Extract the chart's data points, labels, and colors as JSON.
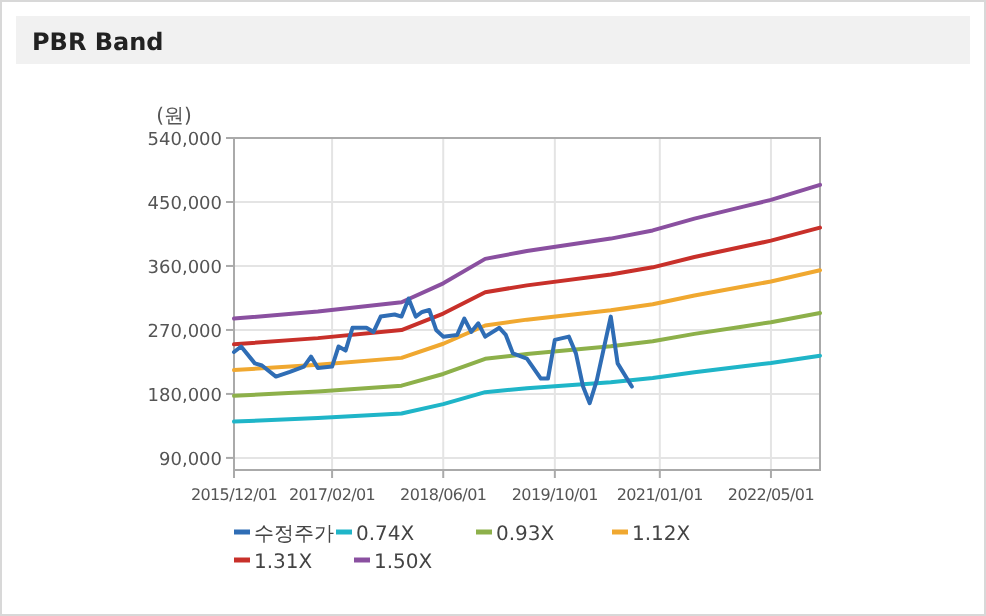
{
  "chart_data": {
    "type": "line",
    "title": "PBR Band",
    "ylabel": "(원)",
    "xlim": [
      "2015-12-01",
      "2022-12-01"
    ],
    "xticks": [
      {
        "value": "2015-12-01",
        "label": "2015/12/01"
      },
      {
        "value": "2017-02-01",
        "label": "2017/02/01"
      },
      {
        "value": "2018-06-01",
        "label": "2018/06/01"
      },
      {
        "value": "2019-10-01",
        "label": "2019/10/01"
      },
      {
        "value": "2021-01-01",
        "label": "2021/01/01"
      },
      {
        "value": "2022-05-01",
        "label": "2022/05/01"
      }
    ],
    "ylim": [
      73000,
      540000
    ],
    "yticks": [
      {
        "value": 90000,
        "label": "90,000"
      },
      {
        "value": 180000,
        "label": "180,000"
      },
      {
        "value": 270000,
        "label": "270,000"
      },
      {
        "value": 360000,
        "label": "360,000"
      },
      {
        "value": 450000,
        "label": "450,000"
      },
      {
        "value": 540000,
        "label": "540,000"
      }
    ],
    "grid": true,
    "legend": "bottom",
    "marker": "none",
    "line_style": "solid",
    "series": [
      {
        "name": "수정주가",
        "color": "#2f6db5",
        "x": [
          "2015-12",
          "2016-01",
          "2016-03",
          "2016-04",
          "2016-06",
          "2016-08",
          "2016-10",
          "2016-11",
          "2016-12",
          "2017-02",
          "2017-03",
          "2017-04",
          "2017-05",
          "2017-07",
          "2017-08",
          "2017-09",
          "2017-11",
          "2017-12",
          "2018-01",
          "2018-02",
          "2018-03",
          "2018-04",
          "2018-05",
          "2018-06",
          "2018-08",
          "2018-09",
          "2018-10",
          "2018-11",
          "2018-12",
          "2019-02",
          "2019-03",
          "2019-04",
          "2019-06",
          "2019-08",
          "2019-09",
          "2019-10",
          "2019-12",
          "2020-01",
          "2020-02",
          "2020-03",
          "2020-04",
          "2020-06",
          "2020-07",
          "2020-09"
        ],
        "values": [
          239000,
          246700,
          223000,
          220000,
          204400,
          211000,
          218500,
          232600,
          216600,
          218500,
          246700,
          241000,
          273000,
          273000,
          267200,
          288800,
          291700,
          288800,
          314000,
          288800,
          295300,
          298100,
          270000,
          260600,
          263000,
          286000,
          267200,
          279300,
          260600,
          273000,
          263000,
          237000,
          229800,
          201600,
          201600,
          256000,
          260600,
          237000,
          190400,
          166900,
          199000,
          288800,
          223000,
          190400
        ]
      },
      {
        "name": "0.74X",
        "color": "#1fb5c8",
        "x": [
          "2015-12",
          "2016-12",
          "2017-12",
          "2018-06",
          "2018-12",
          "2019-06",
          "2020-06",
          "2020-12",
          "2021-06",
          "2022-01",
          "2022-05",
          "2022-12"
        ],
        "values": [
          141100,
          146000,
          152400,
          165600,
          182500,
          188000,
          196600,
          202300,
          210500,
          218800,
          223500,
          233800
        ]
      },
      {
        "name": "0.93X",
        "color": "#8db04a",
        "x": [
          "2015-12",
          "2016-12",
          "2017-12",
          "2018-06",
          "2018-12",
          "2019-06",
          "2020-06",
          "2020-12",
          "2021-06",
          "2022-01",
          "2022-05",
          "2022-12"
        ],
        "values": [
          177300,
          183500,
          191600,
          208100,
          229400,
          236200,
          247100,
          254200,
          264500,
          275000,
          280900,
          293900
        ]
      },
      {
        "name": "1.12X",
        "color": "#f0a830",
        "x": [
          "2015-12",
          "2016-12",
          "2017-12",
          "2018-06",
          "2018-12",
          "2019-06",
          "2020-06",
          "2020-12",
          "2021-06",
          "2022-01",
          "2022-05",
          "2022-12"
        ],
        "values": [
          213500,
          221000,
          230700,
          250600,
          276300,
          284500,
          297600,
          306100,
          318500,
          331100,
          338200,
          353900
        ]
      },
      {
        "name": "1.31X",
        "color": "#c8302a",
        "x": [
          "2015-12",
          "2016-12",
          "2017-12",
          "2018-06",
          "2018-12",
          "2019-06",
          "2020-06",
          "2020-12",
          "2021-06",
          "2022-01",
          "2022-05",
          "2022-12"
        ],
        "values": [
          249800,
          258500,
          269900,
          293100,
          323100,
          332700,
          348000,
          358100,
          372600,
          387300,
          395600,
          413900
        ]
      },
      {
        "name": "1.50X",
        "color": "#8a50a0",
        "x": [
          "2015-12",
          "2016-12",
          "2017-12",
          "2018-06",
          "2018-12",
          "2019-06",
          "2020-06",
          "2020-12",
          "2021-06",
          "2022-01",
          "2022-05",
          "2022-12"
        ],
        "values": [
          286000,
          296000,
          309000,
          335600,
          370000,
          381000,
          398500,
          410000,
          426600,
          443500,
          453000,
          474000
        ]
      }
    ]
  }
}
